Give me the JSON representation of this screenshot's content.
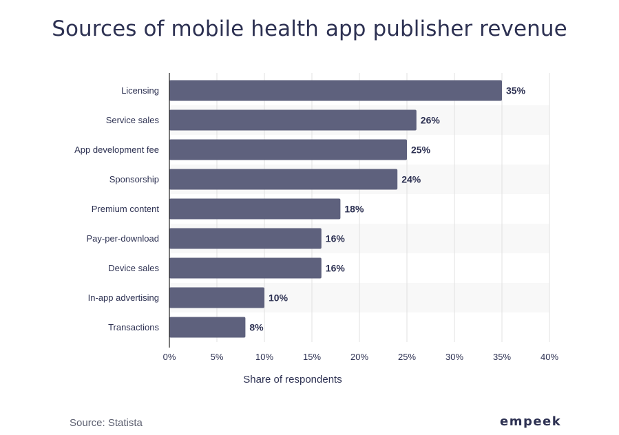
{
  "title": "Sources of mobile health app publisher revenue",
  "source": "Source: Statista",
  "logo": "empeek",
  "colors": {
    "bar": "#5e617d",
    "text": "#2d3152",
    "band": "#f8f8f8",
    "grid": "#e0e0e0"
  },
  "chart_data": {
    "type": "bar",
    "orientation": "horizontal",
    "title": "Sources of mobile health app publisher revenue",
    "xlabel": "Share of respondents",
    "ylabel": "",
    "xlim": [
      0,
      40
    ],
    "x_ticks": [
      "0%",
      "5%",
      "10%",
      "15%",
      "20%",
      "25%",
      "30%",
      "35%",
      "40%"
    ],
    "categories": [
      "Licensing",
      "Service sales",
      "App development fee",
      "Sponsorship",
      "Premium content",
      "Pay-per-download",
      "Device sales",
      "In-app advertising",
      "Transactions"
    ],
    "values": [
      35,
      26,
      25,
      24,
      18,
      16,
      16,
      10,
      8
    ],
    "value_labels": [
      "35%",
      "26%",
      "25%",
      "24%",
      "18%",
      "16%",
      "16%",
      "10%",
      "8%"
    ],
    "grid": true,
    "legend": "none"
  }
}
